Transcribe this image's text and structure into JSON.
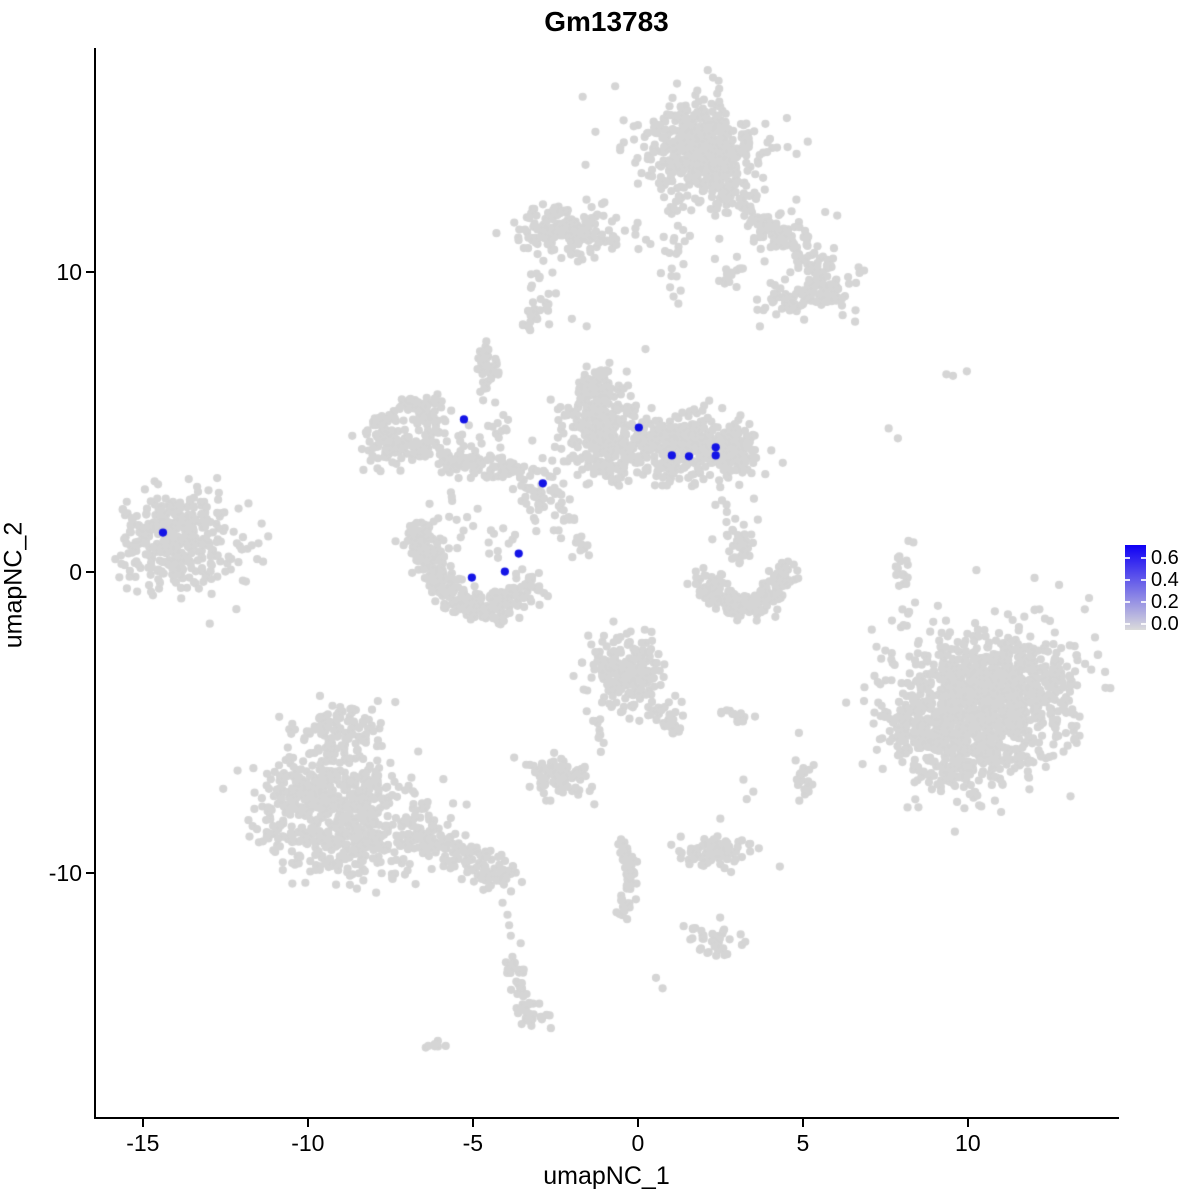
{
  "title": "Gm13783",
  "chart_data": {
    "type": "scatter",
    "subtype": "umap-feature-plot",
    "title": "Gm13783",
    "xlabel": "umapNC_1",
    "ylabel": "umapNC_2",
    "xlim": [
      -16.45,
      14.55
    ],
    "ylim": [
      -18.17,
      17.47
    ],
    "x_ticks": [
      -15,
      -10,
      -5,
      0,
      5,
      10
    ],
    "y_ticks": [
      -10,
      0,
      10
    ],
    "grid": false,
    "legend_position": "right",
    "point_radius_px": 4.1,
    "base_color": "#D5D5D5",
    "axis_color": "#000000",
    "seed": 12345,
    "legend": {
      "labels": [
        "0.6",
        "0.4",
        "0.2",
        "0.0"
      ],
      "values": [
        0.6,
        0.4,
        0.2,
        0.0
      ],
      "bar_value_range": [
        -0.055,
        0.72
      ],
      "low_color": "#DBDBDB",
      "high_color": "#0F00F5",
      "notch_values": [
        0.0,
        0.2,
        0.4,
        0.6
      ]
    },
    "expressed_points": {
      "color": "#1414E6",
      "points": [
        [
          -5.27,
          5.1
        ],
        [
          0.03,
          4.83
        ],
        [
          1.03,
          3.9
        ],
        [
          1.55,
          3.87
        ],
        [
          2.36,
          4.17
        ],
        [
          2.36,
          3.9
        ],
        [
          -2.88,
          2.97
        ],
        [
          -3.61,
          0.63
        ],
        [
          -4.03,
          0.03
        ],
        [
          -5.03,
          -0.17
        ],
        [
          -14.39,
          1.33
        ]
      ]
    },
    "background_clusters": [
      {
        "t": "g",
        "x": 1.88,
        "y": 14.05,
        "sx": 0.68,
        "sy": 0.68,
        "n": 420
      },
      {
        "t": "g",
        "x": 1.88,
        "y": 14.05,
        "sx": 1.15,
        "sy": 1.05,
        "n": 190
      },
      {
        "t": "p",
        "pts": [
          [
            2.4,
            12.9
          ],
          [
            3.9,
            11.6
          ],
          [
            5.7,
            9.7
          ]
        ],
        "s": 0.32,
        "n": 130
      },
      {
        "t": "g",
        "x": 4.6,
        "y": 10.8,
        "sx": 1.0,
        "sy": 0.8,
        "n": 45
      },
      {
        "t": "g",
        "x": 5.85,
        "y": 9.3,
        "sx": 0.42,
        "sy": 0.38,
        "n": 45
      },
      {
        "t": "g",
        "x": 4.55,
        "y": 9.0,
        "sx": 0.45,
        "sy": 0.28,
        "n": 40
      },
      {
        "t": "g",
        "x": 2.85,
        "y": 9.85,
        "sx": 0.3,
        "sy": 0.2,
        "n": 14
      },
      {
        "t": "g",
        "x": 6.35,
        "y": 9.6,
        "sx": 0.5,
        "sy": 0.7,
        "n": 12
      },
      {
        "t": "g",
        "x": -2.2,
        "y": 11.3,
        "sx": 0.8,
        "sy": 0.45,
        "n": 170
      },
      {
        "t": "p",
        "pts": [
          [
            -0.8,
            11.3
          ],
          [
            0.6,
            10.9
          ]
        ],
        "s": 0.25,
        "n": 12
      },
      {
        "t": "p",
        "pts": [
          [
            1.25,
            12.6
          ],
          [
            1.05,
            10.4
          ]
        ],
        "s": 0.18,
        "n": 22
      },
      {
        "t": "p",
        "pts": [
          [
            1.05,
            10.2
          ],
          [
            1.2,
            8.9
          ]
        ],
        "s": 0.2,
        "n": 8
      },
      {
        "t": "p",
        "pts": [
          [
            -2.9,
            10.3
          ],
          [
            -3.1,
            9.2
          ]
        ],
        "s": 0.15,
        "n": 7
      },
      {
        "t": "p",
        "pts": [
          [
            -3.3,
            8.15
          ],
          [
            -2.7,
            9.2
          ]
        ],
        "s": 0.14,
        "n": 26
      },
      {
        "t": "p",
        "pts": [
          [
            -4.62,
            7.55
          ],
          [
            -4.5,
            6.3
          ]
        ],
        "s": 0.18,
        "n": 40
      },
      {
        "t": "p",
        "pts": [
          [
            -4.45,
            6.1
          ],
          [
            -4.1,
            4.6
          ]
        ],
        "s": 0.15,
        "n": 10
      },
      {
        "t": "r",
        "x": -6.95,
        "y": 4.75,
        "rx": 0.85,
        "ry": 0.75,
        "s": 0.22,
        "n": 140
      },
      {
        "t": "g",
        "x": -7.5,
        "y": 4.2,
        "sx": 0.45,
        "sy": 0.45,
        "n": 70
      },
      {
        "t": "g",
        "x": -6.3,
        "y": 5.5,
        "sx": 0.32,
        "sy": 0.28,
        "n": 30
      },
      {
        "t": "p",
        "pts": [
          [
            -6.1,
            3.85
          ],
          [
            -4.9,
            3.5
          ],
          [
            -3.6,
            3.55
          ]
        ],
        "s": 0.22,
        "n": 110
      },
      {
        "t": "g",
        "x": -4.8,
        "y": 4.35,
        "sx": 0.5,
        "sy": 0.45,
        "n": 15
      },
      {
        "t": "g",
        "x": -2.85,
        "y": 2.7,
        "sx": 0.45,
        "sy": 0.45,
        "n": 55
      },
      {
        "t": "p",
        "pts": [
          [
            -2.4,
            1.9
          ],
          [
            -1.35,
            0.6
          ]
        ],
        "s": 0.25,
        "n": 22
      },
      {
        "t": "g",
        "x": -1.05,
        "y": 4.95,
        "sx": 0.6,
        "sy": 0.8,
        "n": 300
      },
      {
        "t": "g",
        "x": -1.35,
        "y": 6.15,
        "sx": 0.32,
        "sy": 0.3,
        "n": 45
      },
      {
        "t": "g",
        "x": -0.9,
        "y": 3.6,
        "sx": 0.5,
        "sy": 0.35,
        "n": 60
      },
      {
        "t": "g",
        "x": 1.75,
        "y": 4.1,
        "sx": 0.8,
        "sy": 0.5,
        "n": 330
      },
      {
        "t": "g",
        "x": 2.9,
        "y": 4.15,
        "sx": 0.32,
        "sy": 0.42,
        "n": 80
      },
      {
        "t": "p",
        "pts": [
          [
            0.1,
            4.6
          ],
          [
            0.85,
            4.3
          ]
        ],
        "s": 0.3,
        "n": 45
      },
      {
        "t": "g",
        "x": 1.0,
        "y": 3.2,
        "sx": 0.3,
        "sy": 0.25,
        "n": 18
      },
      {
        "t": "g",
        "x": -14.0,
        "y": 1.05,
        "sx": 0.85,
        "sy": 0.8,
        "n": 300
      },
      {
        "t": "g",
        "x": -13.2,
        "y": 0.5,
        "sx": 0.8,
        "sy": 0.8,
        "n": 45
      },
      {
        "t": "d",
        "pts": [
          [
            -12.1,
            2.13
          ],
          [
            -11.8,
            2.3
          ],
          [
            -11.4,
            1.63
          ],
          [
            -11.2,
            1.2
          ],
          [
            -11.7,
            0.9
          ],
          [
            -12.4,
            0.53
          ],
          [
            -12.5,
            0.03
          ],
          [
            -11.97,
            -0.27
          ]
        ]
      },
      {
        "t": "p",
        "pts": [
          [
            -6.6,
            1.3
          ],
          [
            -6.35,
            0.3
          ],
          [
            -5.8,
            -0.6
          ],
          [
            -4.9,
            -1.15
          ],
          [
            -3.9,
            -1.1
          ],
          [
            -3.2,
            -0.45
          ]
        ],
        "s": 0.28,
        "n": 330
      },
      {
        "t": "g",
        "x": -5.6,
        "y": 1.6,
        "sx": 0.6,
        "sy": 0.4,
        "n": 18
      },
      {
        "t": "g",
        "x": -4.3,
        "y": 1.1,
        "sx": 0.4,
        "sy": 0.4,
        "n": 10
      },
      {
        "t": "g",
        "x": -8.9,
        "y": -5.3,
        "sx": 0.55,
        "sy": 0.5,
        "n": 100
      },
      {
        "t": "g",
        "x": -9.3,
        "y": -7.2,
        "sx": 1.05,
        "sy": 0.85,
        "n": 300
      },
      {
        "t": "g",
        "x": -8.6,
        "y": -8.9,
        "sx": 1.15,
        "sy": 0.75,
        "n": 300
      },
      {
        "t": "g",
        "x": -10.5,
        "y": -7.9,
        "sx": 0.55,
        "sy": 0.8,
        "n": 90
      },
      {
        "t": "p",
        "pts": [
          [
            -6.9,
            -8.4
          ],
          [
            -5.0,
            -9.6
          ]
        ],
        "s": 0.3,
        "n": 110
      },
      {
        "t": "g",
        "x": -4.45,
        "y": -10.0,
        "sx": 0.35,
        "sy": 0.3,
        "n": 60
      },
      {
        "t": "d",
        "pts": [
          [
            -4.1,
            -11.0
          ],
          [
            -3.95,
            -11.4
          ],
          [
            -3.9,
            -11.75
          ],
          [
            -3.85,
            -12.1
          ],
          [
            -3.8,
            -12.8
          ],
          [
            -3.55,
            -12.35
          ]
        ]
      },
      {
        "t": "p",
        "pts": [
          [
            -3.75,
            -13.1
          ],
          [
            -3.35,
            -14.6
          ]
        ],
        "s": 0.15,
        "n": 35
      },
      {
        "t": "g",
        "x": -3.25,
        "y": -14.8,
        "sx": 0.3,
        "sy": 0.2,
        "n": 22
      },
      {
        "t": "p",
        "pts": [
          [
            -6.25,
            -15.85
          ],
          [
            -5.85,
            -15.45
          ]
        ],
        "s": 0.1,
        "n": 7
      },
      {
        "t": "g",
        "x": -2.4,
        "y": -6.75,
        "sx": 0.55,
        "sy": 0.3,
        "n": 90
      },
      {
        "t": "d",
        "pts": [
          [
            -2.85,
            -7.35
          ],
          [
            -2.65,
            -7.6
          ]
        ]
      },
      {
        "t": "g",
        "x": -0.35,
        "y": -3.3,
        "sx": 0.55,
        "sy": 0.6,
        "n": 230
      },
      {
        "t": "p",
        "pts": [
          [
            0.55,
            -4.3
          ],
          [
            1.25,
            -5.3
          ]
        ],
        "s": 0.2,
        "n": 35
      },
      {
        "t": "p",
        "pts": [
          [
            -1.25,
            -4.6
          ],
          [
            -1.05,
            -5.9
          ]
        ],
        "s": 0.12,
        "n": 10
      },
      {
        "t": "p",
        "pts": [
          [
            2.45,
            -4.75
          ],
          [
            3.3,
            -4.9
          ]
        ],
        "s": 0.1,
        "n": 14
      },
      {
        "t": "d",
        "pts": [
          [
            3.55,
            -4.8
          ],
          [
            3.2,
            -6.9
          ],
          [
            3.5,
            -7.3
          ],
          [
            3.3,
            -7.55
          ]
        ]
      },
      {
        "t": "g",
        "x": 5.1,
        "y": -7.15,
        "sx": 0.18,
        "sy": 0.4,
        "n": 22
      },
      {
        "t": "p",
        "pts": [
          [
            -0.5,
            -8.9
          ],
          [
            -0.2,
            -9.9
          ],
          [
            -0.3,
            -10.9
          ],
          [
            -0.38,
            -11.6
          ]
        ],
        "s": 0.13,
        "n": 55
      },
      {
        "t": "g",
        "x": 2.35,
        "y": -12.25,
        "sx": 0.4,
        "sy": 0.28,
        "n": 40
      },
      {
        "t": "d",
        "pts": [
          [
            1.67,
            -11.85
          ],
          [
            0.55,
            -13.5
          ],
          [
            0.75,
            -13.85
          ]
        ]
      },
      {
        "t": "g",
        "x": 2.35,
        "y": -9.3,
        "sx": 0.5,
        "sy": 0.28,
        "n": 85
      },
      {
        "t": "d",
        "pts": [
          [
            2.5,
            -8.2
          ],
          [
            1.3,
            -8.8
          ]
        ]
      },
      {
        "t": "g",
        "x": 10.4,
        "y": -4.3,
        "sx": 1.35,
        "sy": 1.15,
        "n": 850
      },
      {
        "t": "g",
        "x": 8.7,
        "y": -5.2,
        "sx": 0.6,
        "sy": 0.6,
        "n": 130
      },
      {
        "t": "g",
        "x": 11.7,
        "y": -3.3,
        "sx": 0.8,
        "sy": 0.7,
        "n": 140
      },
      {
        "t": "g",
        "x": 10.2,
        "y": -6.3,
        "sx": 0.9,
        "sy": 0.5,
        "n": 120
      },
      {
        "t": "g",
        "x": 10.4,
        "y": -4.4,
        "sx": 1.9,
        "sy": 1.7,
        "n": 100
      },
      {
        "t": "d",
        "pts": [
          [
            7.7,
            -1.6
          ],
          [
            8.4,
            -1.0
          ],
          [
            7.5,
            -2.6
          ]
        ]
      },
      {
        "t": "p",
        "pts": [
          [
            7.9,
            0.6
          ],
          [
            8.05,
            -0.4
          ]
        ],
        "s": 0.12,
        "n": 18
      },
      {
        "t": "d",
        "pts": [
          [
            8.2,
            1.05
          ],
          [
            8.05,
            -1.75
          ]
        ]
      },
      {
        "t": "p",
        "pts": [
          [
            2.05,
            -0.2
          ],
          [
            2.5,
            -0.85
          ],
          [
            3.3,
            -1.15
          ],
          [
            4.15,
            -0.75
          ],
          [
            4.55,
            0.1
          ]
        ],
        "s": 0.22,
        "n": 230
      },
      {
        "t": "g",
        "x": 2.9,
        "y": 1.3,
        "sx": 0.45,
        "sy": 0.55,
        "n": 16
      },
      {
        "t": "p",
        "pts": [
          [
            3.25,
            1.25
          ],
          [
            3.1,
            0.2
          ]
        ],
        "s": 0.12,
        "n": 22
      },
      {
        "t": "d",
        "pts": [
          [
            2.35,
            2.25
          ],
          [
            2.55,
            2.4
          ],
          [
            9.35,
            6.6
          ],
          [
            9.55,
            6.55
          ],
          [
            9.97,
            6.7
          ],
          [
            7.6,
            4.8
          ],
          [
            7.88,
            4.47
          ],
          [
            8.35,
            1.0
          ],
          [
            -2.0,
            8.45
          ],
          [
            -1.55,
            8.2
          ]
        ]
      }
    ]
  }
}
